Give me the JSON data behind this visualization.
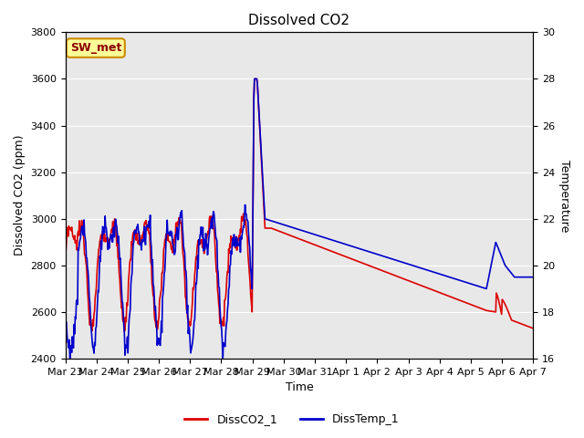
{
  "title": "Dissolved CO2",
  "xlabel": "Time",
  "ylabel_left": "Dissolved CO2 (ppm)",
  "ylabel_right": "Temperature",
  "ylim_left": [
    2400,
    3800
  ],
  "ylim_right": [
    16,
    30
  ],
  "background_color": "#ffffff",
  "plot_bg_color": "#e8e8e8",
  "legend_entries": [
    "DissCO2_1",
    "DissTemp_1"
  ],
  "legend_colors": [
    "#dd0000",
    "#0000cc"
  ],
  "annotation_text": "SW_met",
  "annotation_bg": "#ffff99",
  "annotation_border": "#cc8800",
  "line_color_co2": "#dd0000",
  "line_color_temp": "#0000cc",
  "title_fontsize": 11,
  "axis_fontsize": 9,
  "tick_fontsize": 8,
  "yticks_left": [
    2400,
    2600,
    2800,
    3000,
    3200,
    3400,
    3600,
    3800
  ],
  "yticks_right": [
    16,
    18,
    20,
    22,
    24,
    26,
    28,
    30
  ],
  "tick_labels_x": [
    "Mar 23",
    "Mar 24",
    "Mar 25",
    "Mar 26",
    "Mar 27",
    "Mar 28",
    "Mar 29",
    "Mar 30",
    "Mar 31",
    "Apr 1",
    "Apr 2",
    "Apr 3",
    "Apr 4",
    "Apr 5",
    "Apr 6",
    "Apr 7"
  ]
}
